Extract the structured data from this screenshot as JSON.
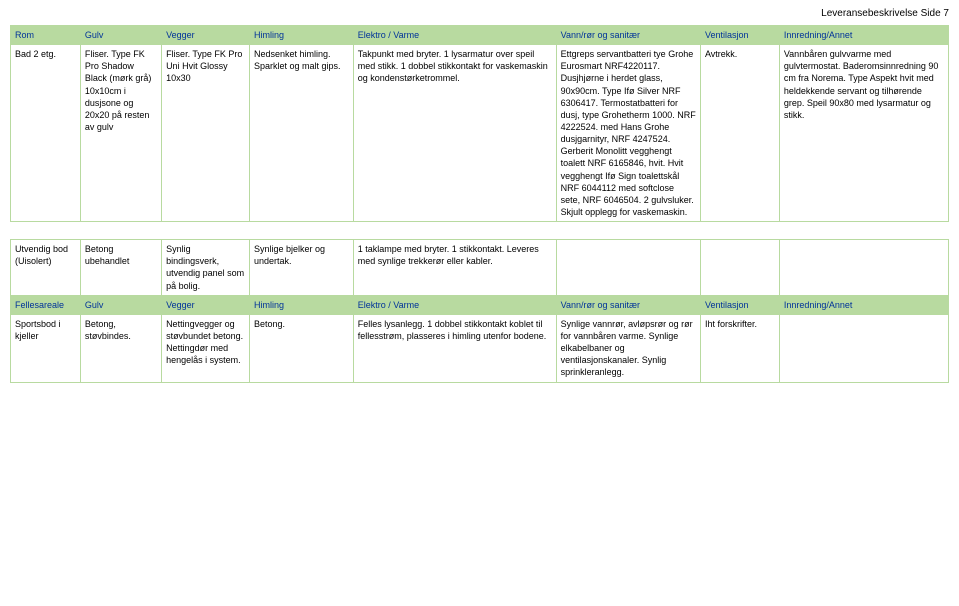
{
  "page": {
    "title": "Leveransebeskrivelse   Side 7"
  },
  "table1": {
    "headers": [
      "Rom",
      "Gulv",
      "Vegger",
      "Himling",
      "Elektro / Varme",
      "Vann/rør og sanitær",
      "Ventilasjon",
      "Innredning/Annet"
    ],
    "row": {
      "rom": "Bad 2 etg.",
      "gulv": "Fliser. Type FK Pro Shadow Black (mørk grå) 10x10cm i dusjsone og 20x20 på resten av gulv",
      "vegger": "Fliser. Type FK Pro Uni Hvit Glossy 10x30",
      "himling": "Nedsenket himling. Sparklet og malt gips.",
      "elektro": "Takpunkt med bryter. 1 lysarmatur over speil med stikk. 1 dobbel stikkontakt for vaskemaskin og kondenstørketrommel.",
      "vann": "Ettgreps servantbatteri tye Grohe Eurosmart NRF4220117. Dusjhjørne i herdet glass, 90x90cm. Type Ifø Silver NRF 6306417. Termostatbatteri for dusj, type Grohetherm 1000. NRF 4222524. med Hans Grohe dusjgarnityr, NRF 4247524. Gerberit Monolitt vegghengt toalett NRF 6165846, hvit. Hvit vegghengt Ifø Sign toalettskål NRF 6044112 med softclose sete, NRF 6046504. 2 gulvsluker. Skjult opplegg for vaskemaskin.",
      "ventilasjon": "Avtrekk.",
      "innredning": "Vannbåren gulvvarme med gulvtermostat. Baderomsinnredning 90 cm fra Norema. Type Aspekt hvit med heldekkende servant og tilhørende grep. Speil 90x80 med lysarmatur og stikk."
    }
  },
  "table2": {
    "row": {
      "rom": "Utvendig bod (Uisolert)",
      "gulv": "Betong ubehandlet",
      "vegger": "Synlig bindingsverk, utvendig panel som på bolig.",
      "himling": "Synlige bjelker og undertak.",
      "elektro": "1 taklampe med bryter. 1 stikkontakt. Leveres med synlige trekkerør eller kabler.",
      "vann": "",
      "ventilasjon": "",
      "innredning": ""
    }
  },
  "table3": {
    "headers": [
      "Fellesareale",
      "Gulv",
      "Vegger",
      "Himling",
      "Elektro / Varme",
      "Vann/rør og sanitær",
      "Ventilasjon",
      "Innredning/Annet"
    ],
    "row": {
      "rom": "Sportsbod i kjeller",
      "gulv": "Betong, støvbindes.",
      "vegger": "Nettingvegger og støvbundet betong. Nettingdør med hengelås i system.",
      "himling": "Betong.",
      "elektro": "Felles lysanlegg. 1 dobbel stikkontakt koblet til fellesstrøm, plasseres i himling utenfor bodene.",
      "vann": "Synlige vannrør, avløpsrør og rør for vannbåren varme. Synlige elkabelbaner og ventilasjonskanaler. Synlig sprinkleranlegg.",
      "ventilasjon": "Iht forskrifter.",
      "innredning": ""
    }
  },
  "styling": {
    "header_bg": "#b8daa0",
    "header_text": "#003399",
    "border_color": "#b8daa0",
    "body_text": "#000000",
    "font_family": "Arial",
    "font_size_body": 9,
    "font_size_title": 10
  }
}
